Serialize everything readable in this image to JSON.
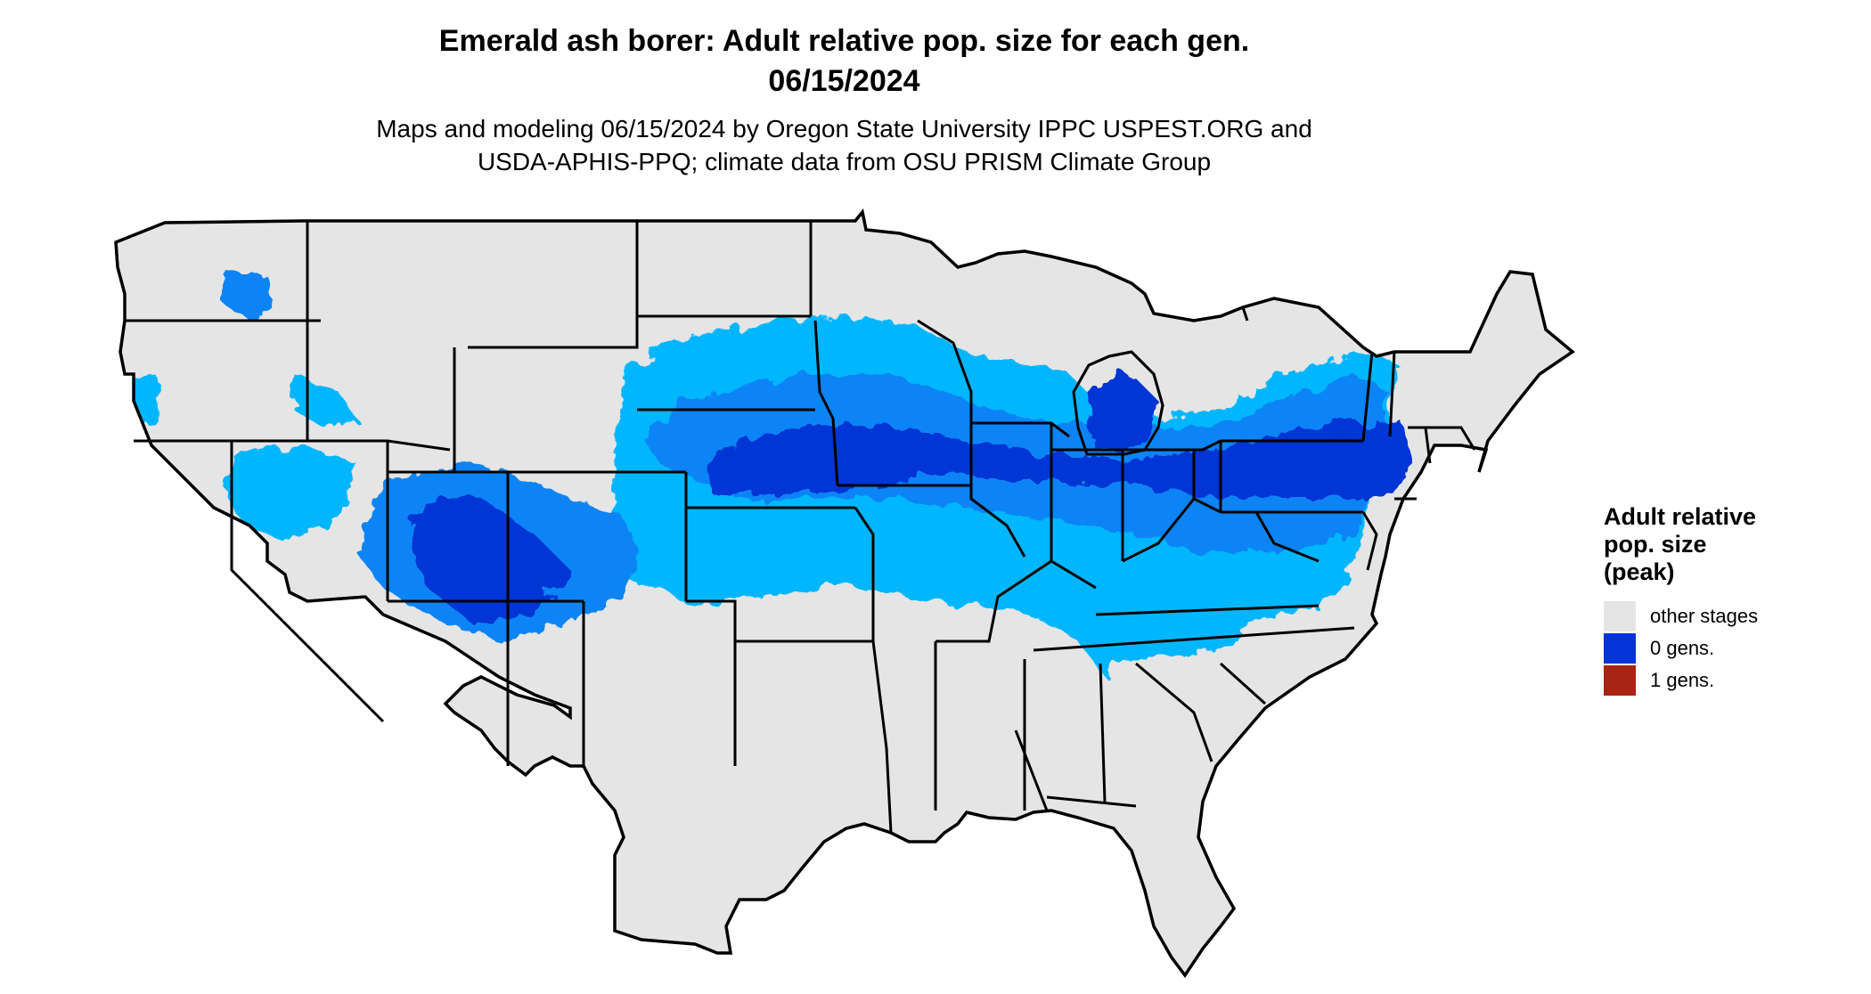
{
  "map": {
    "title_line1": "Emerald ash borer: Adult relative pop. size for each gen.",
    "title_line2": "06/15/2024",
    "subtitle_line1": "Maps and modeling 06/15/2024 by Oregon State University IPPC USPEST.ORG and",
    "subtitle_line2": "USDA-APHIS-PPQ; climate data from OSU PRISM Climate Group",
    "colors": {
      "land": "#e5e5e5",
      "border": "#000000",
      "light_blue": "#00b7ff",
      "mid_blue": "#0a84f5",
      "dark_blue": "#0434d6"
    }
  },
  "legend": {
    "title_line1": "Adult relative",
    "title_line2": "pop. size",
    "title_line3": "(peak)",
    "items": [
      {
        "label": "other stages",
        "color": "#e5e5e5"
      },
      {
        "label": "0 gens.",
        "color": "#0433d8"
      },
      {
        "label": "1 gens.",
        "color": "#a82414"
      }
    ]
  }
}
